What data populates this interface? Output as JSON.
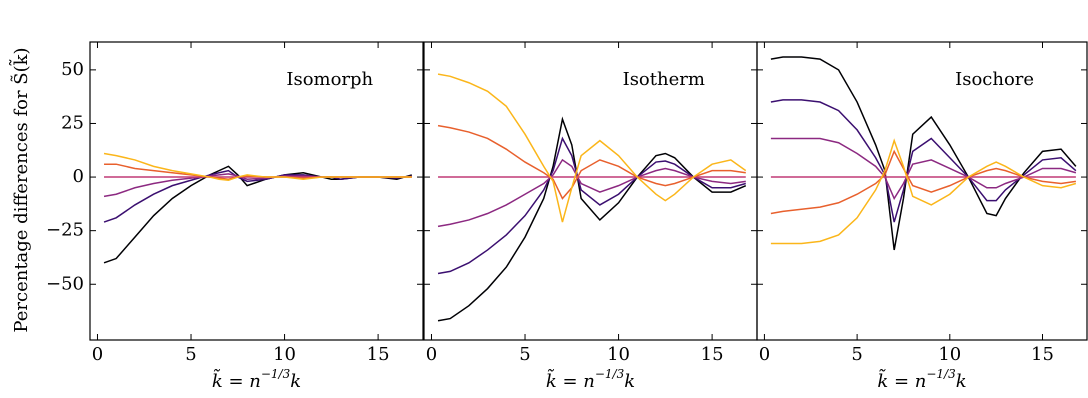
{
  "chart_data": [
    {
      "type": "line",
      "title": "Isomorph",
      "ylabel": "Percentage differences for S̃(k̃)",
      "xlabel": {
        "base": "k̃ = n",
        "exponent": "−1/3",
        "tail": "k"
      },
      "x": [
        0.35,
        1,
        2,
        3,
        4,
        5,
        6,
        6.5,
        7,
        7.5,
        8,
        9,
        10,
        11,
        12,
        12.5,
        13,
        14,
        15,
        16,
        16.8
      ],
      "xlim": [
        -0.4,
        17.4
      ],
      "xticks": [
        0,
        5,
        10,
        15
      ],
      "ylim": [
        -76,
        63
      ],
      "yticks": [
        50,
        25,
        0,
        {
          "value": -25,
          "label": "−25"
        },
        {
          "value": -50,
          "label": "−50"
        }
      ],
      "show_ytick_labels": true,
      "series": [
        {
          "color": "#000004",
          "values": [
            -40,
            -38,
            -28,
            -18,
            -10,
            -4,
            1,
            3,
            5,
            1,
            -4,
            -1,
            1,
            2,
            0,
            -1,
            -1,
            0,
            0,
            -1,
            1
          ]
        },
        {
          "color": "#3b0f70",
          "values": [
            -21,
            -19,
            -13,
            -8,
            -4,
            -1.5,
            1,
            2,
            3,
            0,
            -2,
            -1,
            1,
            1,
            0,
            0,
            -1,
            0,
            0,
            -0.5,
            0.5
          ]
        },
        {
          "color": "#8c2981",
          "values": [
            -9,
            -8,
            -5,
            -3,
            -1.5,
            -0.5,
            0.5,
            1,
            1.5,
            0.5,
            -1,
            -0.5,
            0.5,
            0.5,
            0,
            0,
            0,
            0,
            0,
            0,
            0
          ]
        },
        {
          "color": "#c03a76",
          "values": [
            0,
            0,
            0,
            0,
            0,
            0,
            0,
            0,
            0,
            0,
            0,
            0,
            0,
            0,
            0,
            0,
            0,
            0,
            0,
            0,
            0
          ]
        },
        {
          "color": "#e8602d",
          "values": [
            6,
            6,
            4,
            3,
            2,
            1,
            0,
            -0.5,
            -1,
            0,
            0.5,
            0,
            0,
            -0.5,
            0,
            0,
            0,
            0,
            0,
            0,
            0
          ]
        },
        {
          "color": "#fbb61a",
          "values": [
            11,
            10,
            8,
            5,
            3,
            1.5,
            0,
            -1,
            -1.5,
            0,
            1,
            0,
            0,
            -1,
            0,
            0,
            0,
            0,
            0,
            0,
            0
          ]
        }
      ]
    },
    {
      "type": "line",
      "title": "Isotherm",
      "xlabel": {
        "base": "k̃ = n",
        "exponent": "−1/3",
        "tail": "k"
      },
      "x": [
        0.35,
        1,
        2,
        3,
        4,
        5,
        6,
        6.5,
        7,
        7.5,
        8,
        9,
        10,
        11,
        12,
        12.5,
        13,
        14,
        15,
        16,
        16.8
      ],
      "xlim": [
        -0.4,
        17.4
      ],
      "xticks": [
        0,
        5,
        10,
        15
      ],
      "ylim": [
        -76,
        63
      ],
      "yticks": [
        50,
        25,
        0,
        -25,
        -50
      ],
      "show_ytick_labels": false,
      "series": [
        {
          "color": "#000004",
          "values": [
            -67,
            -66,
            -60,
            -52,
            -42,
            -28,
            -10,
            5,
            27,
            15,
            -10,
            -20,
            -12,
            0,
            10,
            11,
            9,
            0,
            -7,
            -7,
            -4
          ]
        },
        {
          "color": "#3b0f70",
          "values": [
            -45,
            -44,
            -40,
            -34,
            -27,
            -18,
            -6,
            3,
            18,
            10,
            -6,
            -13,
            -8,
            0,
            7,
            7.5,
            6,
            0,
            -5,
            -5,
            -3
          ]
        },
        {
          "color": "#8c2981",
          "values": [
            -23,
            -22,
            -20,
            -17,
            -13,
            -8,
            -3,
            1,
            8,
            5,
            -3,
            -7,
            -4,
            0,
            3,
            4,
            3,
            0,
            -2,
            -3,
            -2
          ]
        },
        {
          "color": "#c03a76",
          "values": [
            0,
            0,
            0,
            0,
            0,
            0,
            0,
            0,
            0,
            0,
            0,
            0,
            0,
            0,
            0,
            0,
            0,
            0,
            0,
            0,
            0
          ]
        },
        {
          "color": "#e8602d",
          "values": [
            24,
            23,
            21,
            18,
            13,
            7,
            2,
            -1,
            -10,
            -5,
            3,
            8,
            5,
            0,
            -3,
            -4,
            -3,
            0,
            3,
            3,
            2
          ]
        },
        {
          "color": "#fbb61a",
          "values": [
            48,
            47,
            44,
            40,
            33,
            20,
            5,
            -2,
            -21,
            -5,
            10,
            17,
            10,
            0,
            -8,
            -11,
            -8,
            0,
            6,
            8,
            3
          ]
        }
      ]
    },
    {
      "type": "line",
      "title": "Isochore",
      "xlabel": {
        "base": "k̃ = n",
        "exponent": "−1/3",
        "tail": "k"
      },
      "x": [
        0.35,
        1,
        2,
        3,
        4,
        5,
        6,
        6.5,
        7,
        7.5,
        8,
        9,
        10,
        11,
        12,
        12.5,
        13,
        14,
        15,
        16,
        16.8
      ],
      "xlim": [
        -0.4,
        17.4
      ],
      "xticks": [
        0,
        5,
        10,
        15
      ],
      "ylim": [
        -76,
        63
      ],
      "yticks": [
        50,
        25,
        0,
        -25,
        -50
      ],
      "show_ytick_labels": false,
      "series": [
        {
          "color": "#000004",
          "values": [
            55,
            56,
            56,
            55,
            50,
            35,
            15,
            3,
            -34,
            -10,
            20,
            28,
            15,
            0,
            -17,
            -18,
            -10,
            2,
            12,
            13,
            5
          ]
        },
        {
          "color": "#3b0f70",
          "values": [
            35,
            36,
            36,
            35,
            31,
            22,
            9,
            1,
            -21,
            -6,
            12,
            18,
            9,
            0,
            -11,
            -11,
            -6,
            1,
            8,
            9,
            3
          ]
        },
        {
          "color": "#8c2981",
          "values": [
            18,
            18,
            18,
            18,
            16,
            11,
            5,
            0,
            -10,
            -3,
            6,
            8,
            4,
            0,
            -5,
            -5,
            -3,
            0,
            4,
            4,
            2
          ]
        },
        {
          "color": "#c03a76",
          "values": [
            0,
            0,
            0,
            0,
            0,
            0,
            0,
            0,
            0,
            0,
            0,
            0,
            0,
            0,
            0,
            0,
            0,
            0,
            0,
            0,
            0
          ]
        },
        {
          "color": "#e8602d",
          "values": [
            -17,
            -16,
            -15,
            -14,
            -12,
            -8,
            -3,
            1,
            12,
            4,
            -4,
            -7,
            -4,
            0,
            3,
            4,
            3,
            0,
            -2,
            -3,
            -2
          ]
        },
        {
          "color": "#fbb61a",
          "values": [
            -31,
            -31,
            -31,
            -30,
            -27,
            -19,
            -6,
            3,
            17,
            5,
            -9,
            -13,
            -8,
            0,
            5,
            7,
            5,
            0,
            -4,
            -5,
            -3
          ]
        }
      ]
    }
  ]
}
